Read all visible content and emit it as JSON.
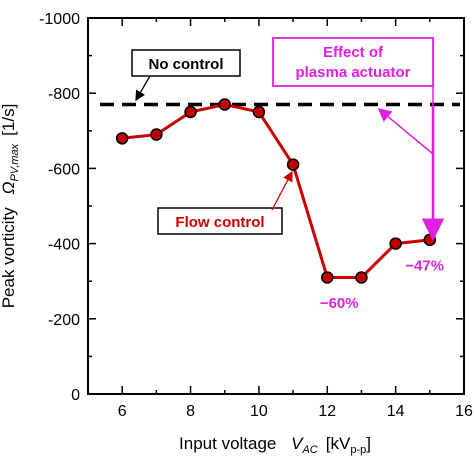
{
  "chart_data": {
    "type": "line",
    "xlabel": {
      "prefix": "Input voltage",
      "var": "V",
      "sub": "AC",
      "unit_open": "[kV",
      "unit_sub": "p-p",
      "unit_close": "]"
    },
    "ylabel": {
      "prefix": "Peak vorticity",
      "var": "Ω",
      "sub": "PV,max",
      "unit": "[1/s]"
    },
    "xlim": [
      5,
      16
    ],
    "ylim": [
      0,
      -1000
    ],
    "x_ticks": [
      "6",
      "8",
      "10",
      "12",
      "14",
      "16"
    ],
    "y_ticks": [
      "0",
      "-200",
      "-400",
      "-600",
      "-800",
      "-1000"
    ],
    "series": [
      {
        "name": "Flow control",
        "color": "#cc0000",
        "marker_color": "#c00000",
        "x": [
          6,
          7,
          8,
          9,
          10,
          11,
          12,
          13,
          14,
          15
        ],
        "y": [
          -680,
          -690,
          -750,
          -770,
          -750,
          -610,
          -310,
          -310,
          -400,
          -410
        ]
      }
    ],
    "reference_lines": [
      {
        "name": "No control",
        "y": -770,
        "style": "dashed",
        "color": "#000000"
      }
    ],
    "annotations": [
      {
        "text": "−60%",
        "x": 12.35,
        "y": -255,
        "color": "#e020e0"
      },
      {
        "text": "−47%",
        "x": 14.85,
        "y": -355,
        "color": "#e020e0"
      },
      {
        "text_line1": "Effect of",
        "text_line2": "plasma actuator",
        "color": "#e020e0"
      }
    ]
  }
}
